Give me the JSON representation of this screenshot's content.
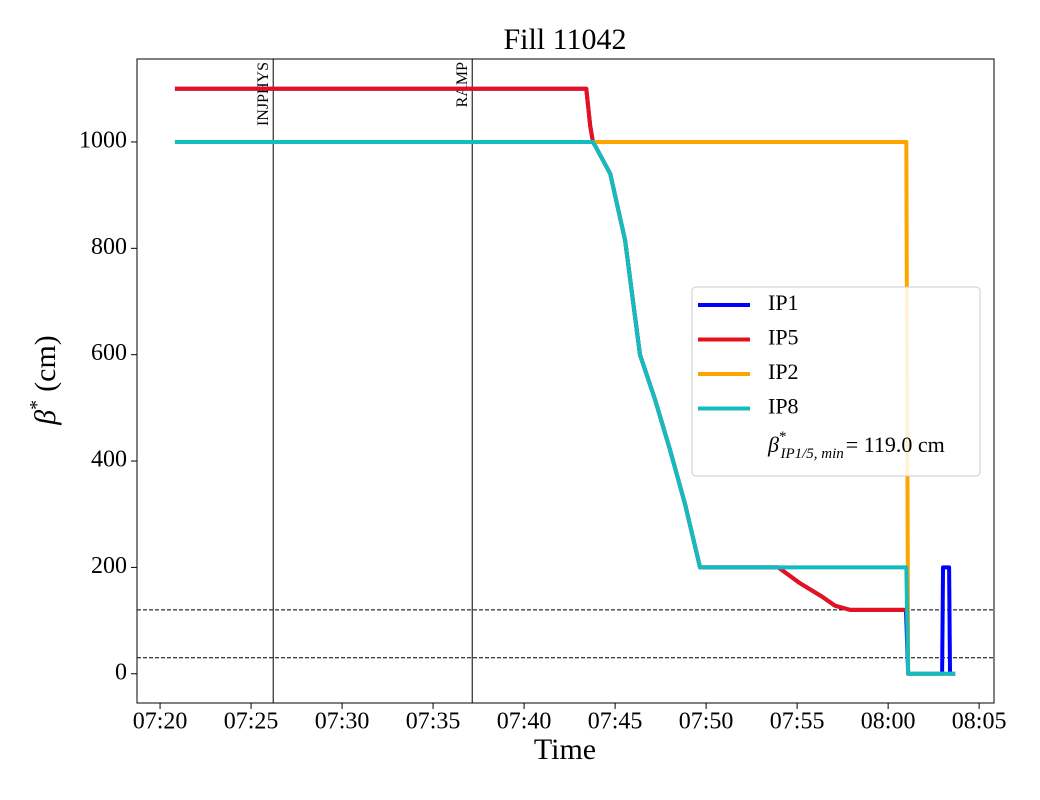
{
  "chart_data": {
    "type": "line",
    "title": "Fill 11042",
    "xlabel": "Time",
    "ylabel": {
      "symbol": "β",
      "sup": "*",
      "text": "(cm)"
    },
    "xlim": [
      "07:18:44",
      "08:05:49"
    ],
    "xticks": [
      "07:20",
      "07:25",
      "07:30",
      "07:35",
      "07:40",
      "07:45",
      "07:50",
      "07:55",
      "08:00",
      "08:05"
    ],
    "ylim": [
      -55,
      1156
    ],
    "yticks": [
      0,
      200,
      400,
      600,
      800,
      1000
    ],
    "series": [
      {
        "name": "IP1",
        "color": "#0000ff",
        "x": [
          "07:20:49",
          "07:43:25",
          "07:43:38",
          "07:43:47",
          "07:43:57",
          "07:44:44",
          "07:45:33",
          "07:46:22",
          "07:47:12",
          "07:48:01",
          "07:48:51",
          "07:49:40",
          "07:53:58",
          "07:55:10",
          "07:56:22",
          "07:57:05",
          "07:57:55",
          "08:00:59",
          "08:01:06",
          "08:02:58",
          "08:03:01",
          "08:03:21",
          "08:03:24",
          "08:03:41"
        ],
        "values": [
          1100,
          1100,
          1030,
          1000,
          990,
          940,
          815,
          600,
          515,
          421,
          318,
          200,
          200,
          170,
          145,
          128,
          120,
          120,
          0,
          0,
          200,
          200,
          0,
          0
        ]
      },
      {
        "name": "IP5",
        "color": "#e8101c",
        "x": [
          "07:20:49",
          "07:43:25",
          "07:43:38",
          "07:43:47",
          "07:43:57",
          "07:44:44",
          "07:45:33",
          "07:46:22",
          "07:47:12",
          "07:48:01",
          "07:48:51",
          "07:49:40",
          "07:53:58",
          "07:55:10",
          "07:56:22",
          "07:57:05",
          "07:57:55",
          "08:00:59"
        ],
        "values": [
          1100,
          1100,
          1030,
          1000,
          990,
          940,
          815,
          600,
          515,
          421,
          318,
          200,
          200,
          170,
          145,
          128,
          120,
          120
        ]
      },
      {
        "name": "IP2",
        "color": "#ffa500",
        "x": [
          "07:20:49",
          "08:01:00",
          "08:01:06",
          "08:03:41"
        ],
        "values": [
          1000,
          1000,
          0,
          0
        ]
      },
      {
        "name": "IP8",
        "color": "#14bdbd",
        "x": [
          "07:20:49",
          "07:43:47",
          "07:43:57",
          "07:44:44",
          "07:45:33",
          "07:46:22",
          "07:47:12",
          "07:48:01",
          "07:48:51",
          "07:49:40",
          "08:01:00",
          "08:01:06",
          "08:03:41"
        ],
        "values": [
          1000,
          1000,
          990,
          940,
          815,
          600,
          515,
          421,
          318,
          200,
          200,
          0,
          0
        ]
      }
    ],
    "vlines": [
      {
        "x": "07:26:13",
        "label": "INJPHYS"
      },
      {
        "x": "07:37:09",
        "label": "RAMP"
      }
    ],
    "hlines": [
      120,
      30
    ],
    "legend_note": {
      "symbol": "β",
      "sup": "*",
      "sub": "IP1/5, min",
      "text": "= 119.0 cm"
    },
    "legend": "center right"
  }
}
